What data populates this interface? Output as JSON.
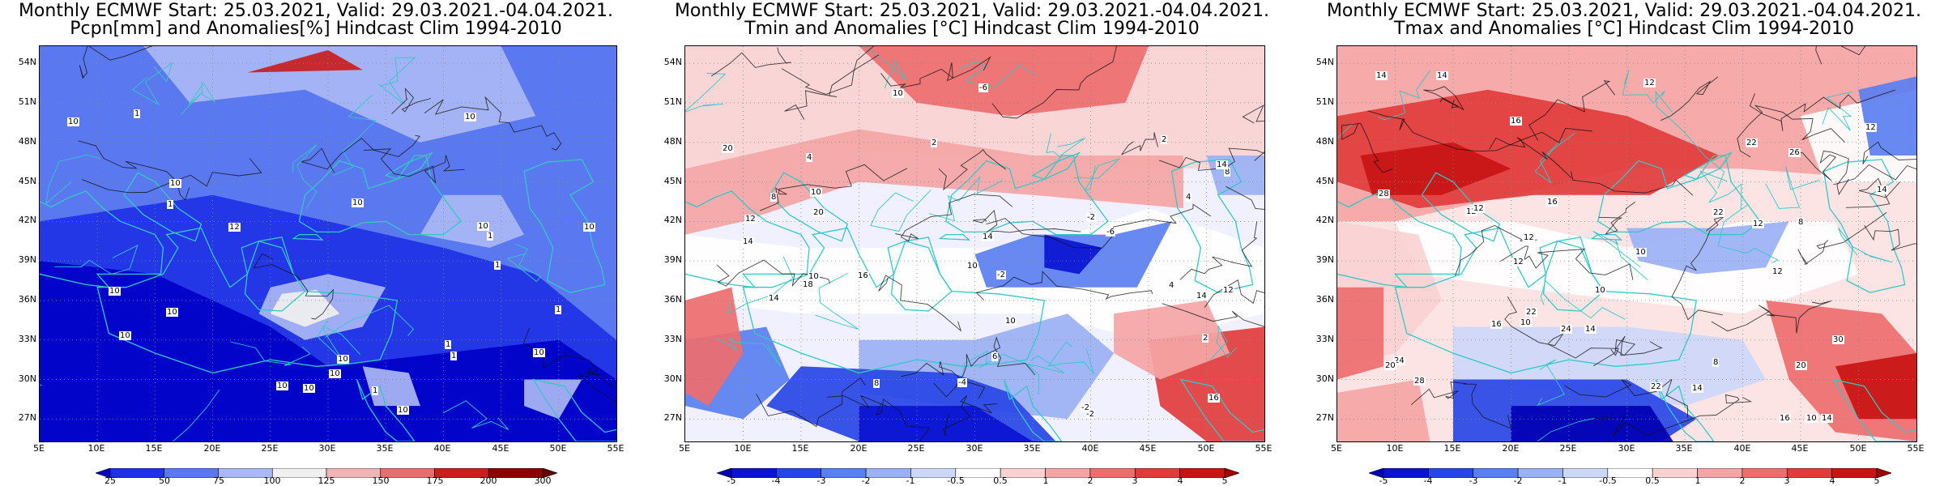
{
  "panels": [
    {
      "id": "pcpn",
      "title_line1": "Monthly ECMWF Start: 25.03.2021, Valid: 29.03.2021.-04.04.2021.",
      "title_line2": "Pcpn[mm] and Anomalies[%] Hindcast Clim 1994-2010",
      "colorbar": {
        "labels": [
          "25",
          "50",
          "75",
          "100",
          "125",
          "150",
          "175",
          "200",
          "300"
        ],
        "colors": [
          "#0000c8",
          "#1e32e6",
          "#5a78f0",
          "#aab9f5",
          "#f0f0f0",
          "#f0b4b4",
          "#e66e6e",
          "#c81e1e",
          "#8c0000",
          "#640000"
        ]
      },
      "contour_labels": [
        "10",
        "10",
        "10",
        "10",
        "10",
        "10",
        "10",
        "10",
        "10",
        "10",
        "10",
        "10",
        "10",
        "10",
        "10",
        "1",
        "1",
        "1",
        "1",
        "1",
        "1",
        "1",
        "1",
        "12"
      ]
    },
    {
      "id": "tmin",
      "title_line1": "Monthly ECMWF Start: 25.03.2021, Valid: 29.03.2021.-04.04.2021.",
      "title_line2": "Tmin and Anomalies [°C] Hindcast Clim 1994-2010",
      "colorbar": {
        "labels": [
          "-5",
          "-4",
          "-3",
          "-2",
          "-1",
          "-0.5",
          "0.5",
          "1",
          "2",
          "3",
          "4",
          "5"
        ],
        "colors": [
          "#0000b4",
          "#0a14d2",
          "#2846e6",
          "#5a7ff0",
          "#9bb1f5",
          "#cdd7fa",
          "#ffffff",
          "#fad2d2",
          "#f5a5a5",
          "#ee6e6e",
          "#e13c3c",
          "#c81414",
          "#a00000"
        ]
      },
      "contour_labels": [
        "2",
        "4",
        "2",
        "4",
        "2",
        "-2",
        "8",
        "10",
        "-2",
        "-4",
        "-6",
        "-2",
        "-6",
        "-2",
        "6",
        "8",
        "14",
        "10",
        "16",
        "12",
        "10",
        "14",
        "14",
        "16",
        "10",
        "12",
        "14",
        "8",
        "10",
        "18",
        "20",
        "20",
        "14",
        "4"
      ]
    },
    {
      "id": "tmax",
      "title_line1": "Monthly ECMWF Start: 25.03.2021, Valid: 29.03.2021.-04.04.2021.",
      "title_line2": "Tmax and Anomalies [°C] Hindcast Clim 1994-2010",
      "colorbar": {
        "labels": [
          "-5",
          "-4",
          "-3",
          "-2",
          "-1",
          "-0.5",
          "0.5",
          "1",
          "2",
          "3",
          "4",
          "5"
        ],
        "colors": [
          "#0000b4",
          "#0a14d2",
          "#2846e6",
          "#5a7ff0",
          "#9bb1f5",
          "#cdd7fa",
          "#ffffff",
          "#fad2d2",
          "#f5a5a5",
          "#ee6e6e",
          "#e13c3c",
          "#c81414",
          "#a00000"
        ]
      },
      "contour_labels": [
        "10",
        "12",
        "14",
        "12",
        "14",
        "16",
        "14",
        "12",
        "10",
        "12",
        "8",
        "12",
        "14",
        "16",
        "12",
        "8",
        "10",
        "14",
        "12",
        "16",
        "10",
        "12",
        "14",
        "16",
        "20",
        "22",
        "22",
        "24",
        "26",
        "20",
        "22",
        "24",
        "28",
        "30",
        "22",
        "28"
      ]
    }
  ],
  "axes": {
    "lat_labels": [
      "54N",
      "51N",
      "48N",
      "45N",
      "42N",
      "39N",
      "36N",
      "33N",
      "30N",
      "27N"
    ],
    "lon_labels": [
      "5E",
      "10E",
      "15E",
      "20E",
      "25E",
      "30E",
      "35E",
      "40E",
      "45E",
      "50E",
      "55E"
    ]
  }
}
